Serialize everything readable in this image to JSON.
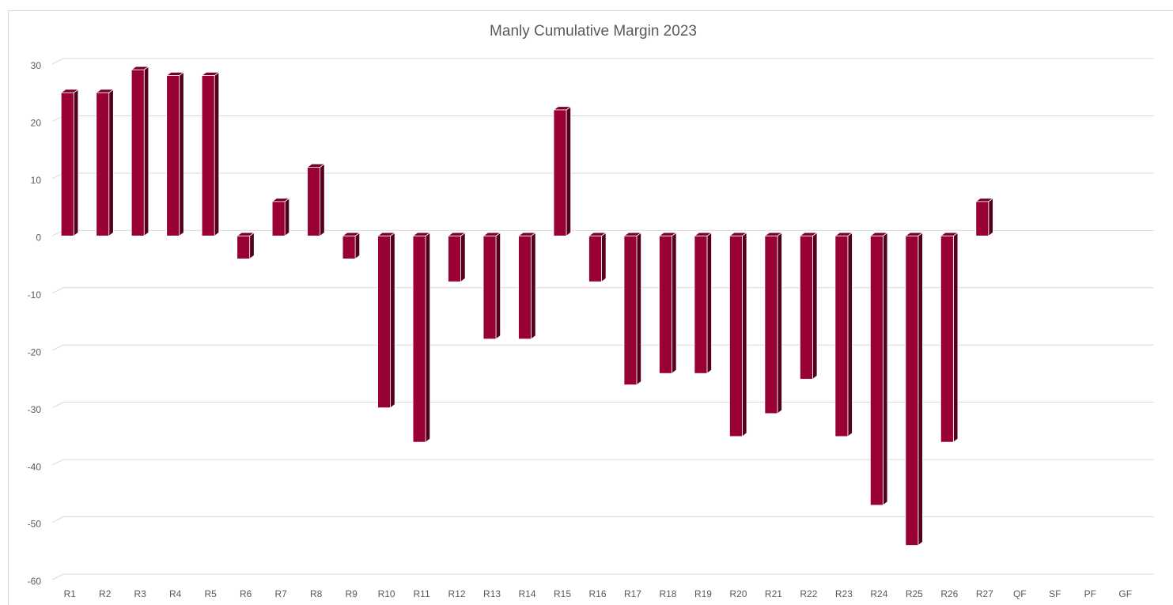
{
  "chart_data": {
    "type": "bar3d",
    "title": "Manly Cumulative Margin 2023",
    "categories": [
      "R1",
      "R2",
      "R3",
      "R4",
      "R5",
      "R6",
      "R7",
      "R8",
      "R9",
      "R10",
      "R11",
      "R12",
      "R13",
      "R14",
      "R15",
      "R16",
      "R17",
      "R18",
      "R19",
      "R20",
      "R21",
      "R22",
      "R23",
      "R24",
      "R25",
      "R26",
      "R27",
      "QF",
      "SF",
      "PF",
      "GF"
    ],
    "values": [
      25,
      25,
      29,
      28,
      28,
      -4,
      6,
      12,
      -4,
      -30,
      -36,
      -8,
      -18,
      -18,
      22,
      -8,
      -26,
      -24,
      -24,
      -35,
      -31,
      -25,
      -35,
      -47,
      -54,
      -36,
      6,
      null,
      null,
      null,
      null
    ],
    "color": "#990033",
    "ylim": [
      -60,
      30
    ],
    "yticks": [
      -60,
      -50,
      -40,
      -30,
      -20,
      -10,
      0,
      10,
      20,
      30
    ],
    "grid": true
  }
}
